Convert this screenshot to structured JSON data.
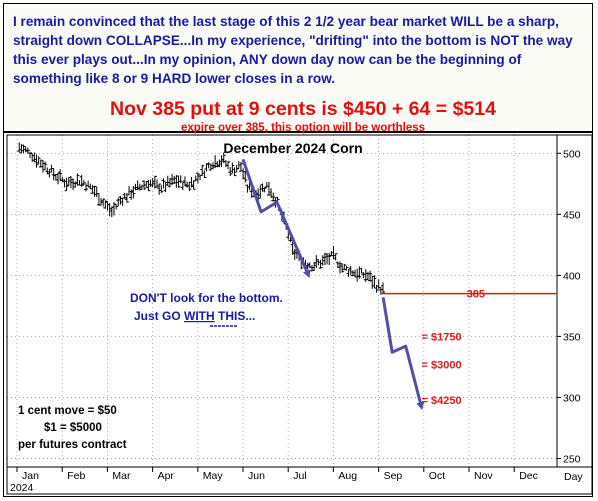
{
  "header": {
    "intro": "I remain convinced that the last stage of this 2 1/2 year bear market WILL be a sharp, straight down COLLAPSE...In my experience, \"drifting\" into the bottom is NOT the way this ever plays out...In my opinion, ANY down day now can be the beginning of something like 8 or 9 HARD lower closes in a row.",
    "headline": "Nov 385 put at 9 cents is $450 + 64 = $514",
    "subline": "expire over 385, this option will be worthless"
  },
  "chart_data": {
    "type": "bar",
    "title": "December 2024 Corn",
    "xlabel": "",
    "ylabel": "",
    "x_months": [
      "Jan",
      "Feb",
      "Mar",
      "Apr",
      "May",
      "Jun",
      "Jul",
      "Aug",
      "Sep",
      "Oct",
      "Nov",
      "Dec"
    ],
    "x_period_label": "Day",
    "x_year_label": "2024",
    "y_ticks": [
      250,
      300,
      350,
      400,
      450,
      500
    ],
    "ylim": [
      243,
      515
    ],
    "grid": true,
    "price_path": [
      {
        "t": 0.05,
        "v": 505
      },
      {
        "t": 0.3,
        "v": 500
      },
      {
        "t": 0.6,
        "v": 490
      },
      {
        "t": 0.85,
        "v": 482
      },
      {
        "t": 1.1,
        "v": 476
      },
      {
        "t": 1.4,
        "v": 478
      },
      {
        "t": 1.7,
        "v": 470
      },
      {
        "t": 1.95,
        "v": 458
      },
      {
        "t": 2.1,
        "v": 452
      },
      {
        "t": 2.3,
        "v": 462
      },
      {
        "t": 2.6,
        "v": 470
      },
      {
        "t": 2.9,
        "v": 476
      },
      {
        "t": 3.2,
        "v": 472
      },
      {
        "t": 3.5,
        "v": 478
      },
      {
        "t": 3.8,
        "v": 474
      },
      {
        "t": 4.0,
        "v": 480
      },
      {
        "t": 4.3,
        "v": 492
      },
      {
        "t": 4.55,
        "v": 495
      },
      {
        "t": 4.75,
        "v": 486
      },
      {
        "t": 4.95,
        "v": 490
      },
      {
        "t": 5.1,
        "v": 472
      },
      {
        "t": 5.3,
        "v": 468
      },
      {
        "t": 5.55,
        "v": 474
      },
      {
        "t": 5.75,
        "v": 460
      },
      {
        "t": 5.95,
        "v": 440
      },
      {
        "t": 6.1,
        "v": 420
      },
      {
        "t": 6.3,
        "v": 412
      },
      {
        "t": 6.55,
        "v": 408
      },
      {
        "t": 6.8,
        "v": 412
      },
      {
        "t": 7.0,
        "v": 416
      },
      {
        "t": 7.2,
        "v": 406
      },
      {
        "t": 7.5,
        "v": 402
      },
      {
        "t": 7.75,
        "v": 400
      },
      {
        "t": 7.95,
        "v": 392
      },
      {
        "t": 8.1,
        "v": 388
      }
    ],
    "projection_arrows": [
      {
        "from": {
          "t": 5.0,
          "v": 495
        },
        "mid": {
          "t": 5.4,
          "v": 452
        },
        "mid2": {
          "t": 5.75,
          "v": 460
        },
        "to": {
          "t": 6.45,
          "v": 400
        }
      },
      {
        "from": {
          "t": 8.1,
          "v": 382
        },
        "mid": {
          "t": 8.3,
          "v": 337
        },
        "mid2": {
          "t": 8.6,
          "v": 342
        },
        "to": {
          "t": 8.95,
          "v": 292
        }
      }
    ],
    "strike": {
      "value": 385,
      "label": "385",
      "t_start": 8.05,
      "t_end": 11.95
    },
    "option_values": [
      {
        "label": "= $1750",
        "v": 350
      },
      {
        "label": "= $3000",
        "v": 327
      },
      {
        "label": "= $4250",
        "v": 298
      }
    ],
    "annotations": {
      "callout_line1": "DON'T look for the bottom.",
      "callout_line2_prefix": "Just GO ",
      "callout_line2_emphasis": "WITH",
      "callout_line2_suffix": " THIS...",
      "contract_line1": "1 cent move = $50",
      "contract_line2": "$1 = $5000",
      "contract_line3": "per futures contract"
    }
  },
  "colors": {
    "text_blue": "#1a1aa0",
    "text_red": "#e01010",
    "arrow_blue": "#5050a8",
    "strike_red": "#d02020",
    "grid": "#9a9a9a",
    "price_bars": "#000000",
    "header_bg": "#fbfbf6"
  }
}
